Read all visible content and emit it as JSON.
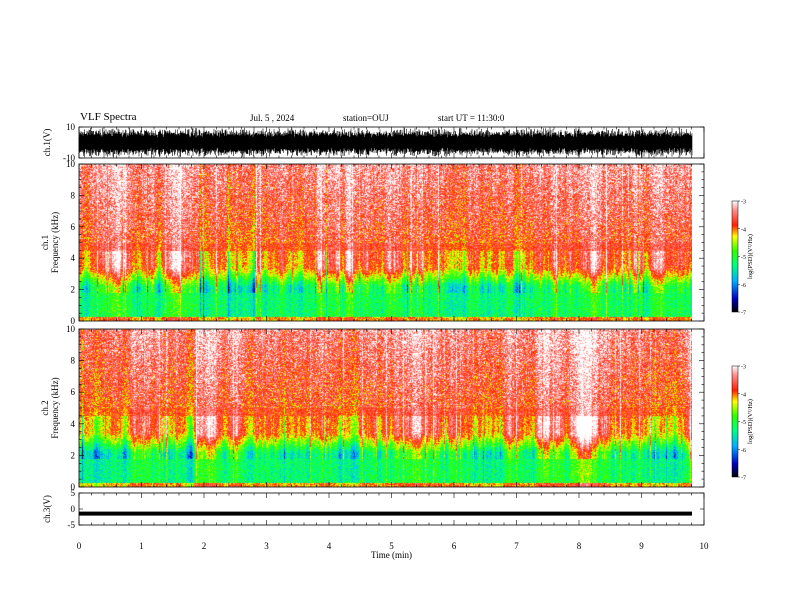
{
  "header": {
    "title": "VLF Spectra",
    "date": "Jul. 5 , 2024",
    "station": "station=OUJ",
    "start_time": "start UT = 11:30:0"
  },
  "chart_data": [
    {
      "type": "line",
      "name": "ch1-waveform",
      "ylabel": "ch.1(V)",
      "ylim": [
        -10,
        10
      ],
      "yticks": [
        "10",
        "-10"
      ],
      "xlim": [
        0,
        10
      ]
    },
    {
      "type": "heatmap",
      "name": "ch1-spectrogram",
      "ylabel_top": "ch.1",
      "ylabel": "Frequency (kHz)",
      "ylim": [
        0,
        10
      ],
      "yticks": [
        "0",
        "2",
        "4",
        "6",
        "8",
        "10"
      ],
      "xlim": [
        0,
        10
      ],
      "colorbar": {
        "label": "log(PSD)(V²/Hz)",
        "range": [
          -7,
          -3
        ],
        "ticks": [
          "-3",
          "-4",
          "-5",
          "-6",
          "-7"
        ]
      }
    },
    {
      "type": "heatmap",
      "name": "ch2-spectrogram",
      "ylabel_top": "ch.2",
      "ylabel": "Frequency (kHz)",
      "ylim": [
        0,
        10
      ],
      "yticks": [
        "0",
        "2",
        "4",
        "6",
        "8",
        "10"
      ],
      "xlim": [
        0,
        10
      ],
      "colorbar": {
        "label": "log(PSD)(V²/Hz)",
        "range": [
          -7,
          -3
        ],
        "ticks": [
          "-3",
          "-4",
          "-5",
          "-6",
          "-7"
        ]
      }
    },
    {
      "type": "line",
      "name": "ch3-waveform",
      "ylabel": "ch.3(V)",
      "ylim": [
        -5,
        5
      ],
      "yticks": [
        "5",
        "0",
        "-5"
      ],
      "xlim": [
        0,
        10
      ],
      "xlabel": "Time (min)",
      "xticks": [
        "0",
        "1",
        "2",
        "3",
        "4",
        "5",
        "6",
        "7",
        "8",
        "9",
        "10"
      ]
    }
  ]
}
